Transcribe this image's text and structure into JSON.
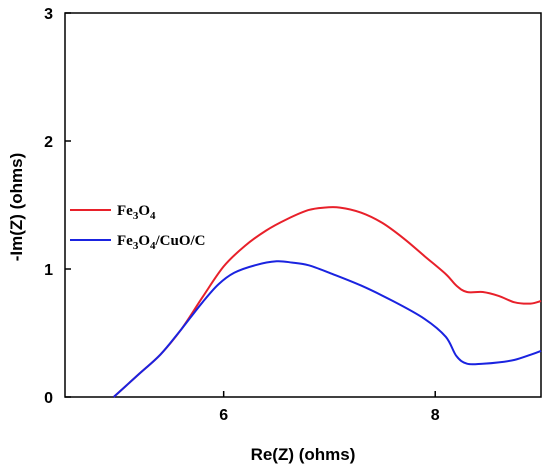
{
  "chart_data": {
    "type": "line",
    "title": "",
    "xlabel": "Re(Z) (ohms)",
    "ylabel": "-Im(Z) (ohms)",
    "xlim": [
      4.5,
      9.0
    ],
    "ylim": [
      0,
      3
    ],
    "x_ticks": [
      6,
      8
    ],
    "y_ticks": [
      0,
      1,
      2,
      3
    ],
    "grid": false,
    "legend_position": "center-left",
    "series": [
      {
        "name": "Fe3O4",
        "color": "#e8202a",
        "overlap_color": "#8b4a38",
        "points": [
          [
            4.96,
            0.0
          ],
          [
            5.2,
            0.18
          ],
          [
            5.4,
            0.33
          ],
          [
            5.6,
            0.53
          ],
          [
            5.8,
            0.78
          ],
          [
            6.0,
            1.02
          ],
          [
            6.2,
            1.18
          ],
          [
            6.4,
            1.3
          ],
          [
            6.6,
            1.39
          ],
          [
            6.8,
            1.46
          ],
          [
            6.95,
            1.48
          ],
          [
            7.1,
            1.48
          ],
          [
            7.3,
            1.44
          ],
          [
            7.5,
            1.36
          ],
          [
            7.7,
            1.24
          ],
          [
            7.9,
            1.1
          ],
          [
            8.1,
            0.96
          ],
          [
            8.2,
            0.87
          ],
          [
            8.3,
            0.82
          ],
          [
            8.45,
            0.82
          ],
          [
            8.6,
            0.79
          ],
          [
            8.75,
            0.74
          ],
          [
            8.9,
            0.73
          ],
          [
            9.0,
            0.75
          ]
        ]
      },
      {
        "name": "Fe3O4/CuO/C",
        "color": "#1a23e0",
        "points": [
          [
            4.96,
            0.0
          ],
          [
            5.2,
            0.18
          ],
          [
            5.4,
            0.33
          ],
          [
            5.6,
            0.53
          ],
          [
            5.8,
            0.74
          ],
          [
            5.95,
            0.88
          ],
          [
            6.1,
            0.97
          ],
          [
            6.3,
            1.03
          ],
          [
            6.5,
            1.06
          ],
          [
            6.65,
            1.05
          ],
          [
            6.8,
            1.03
          ],
          [
            7.0,
            0.97
          ],
          [
            7.3,
            0.87
          ],
          [
            7.6,
            0.75
          ],
          [
            7.9,
            0.61
          ],
          [
            8.1,
            0.47
          ],
          [
            8.2,
            0.32
          ],
          [
            8.3,
            0.26
          ],
          [
            8.45,
            0.26
          ],
          [
            8.6,
            0.27
          ],
          [
            8.75,
            0.29
          ],
          [
            8.9,
            0.33
          ],
          [
            9.0,
            0.36
          ]
        ]
      }
    ],
    "legend": [
      {
        "label_base": "Fe",
        "sub1": "3",
        "mid": "O",
        "sub2": "4",
        "tail": ""
      },
      {
        "label_base": "Fe",
        "sub1": "3",
        "mid": "O",
        "sub2": "4",
        "tail": "/CuO/C"
      }
    ]
  }
}
